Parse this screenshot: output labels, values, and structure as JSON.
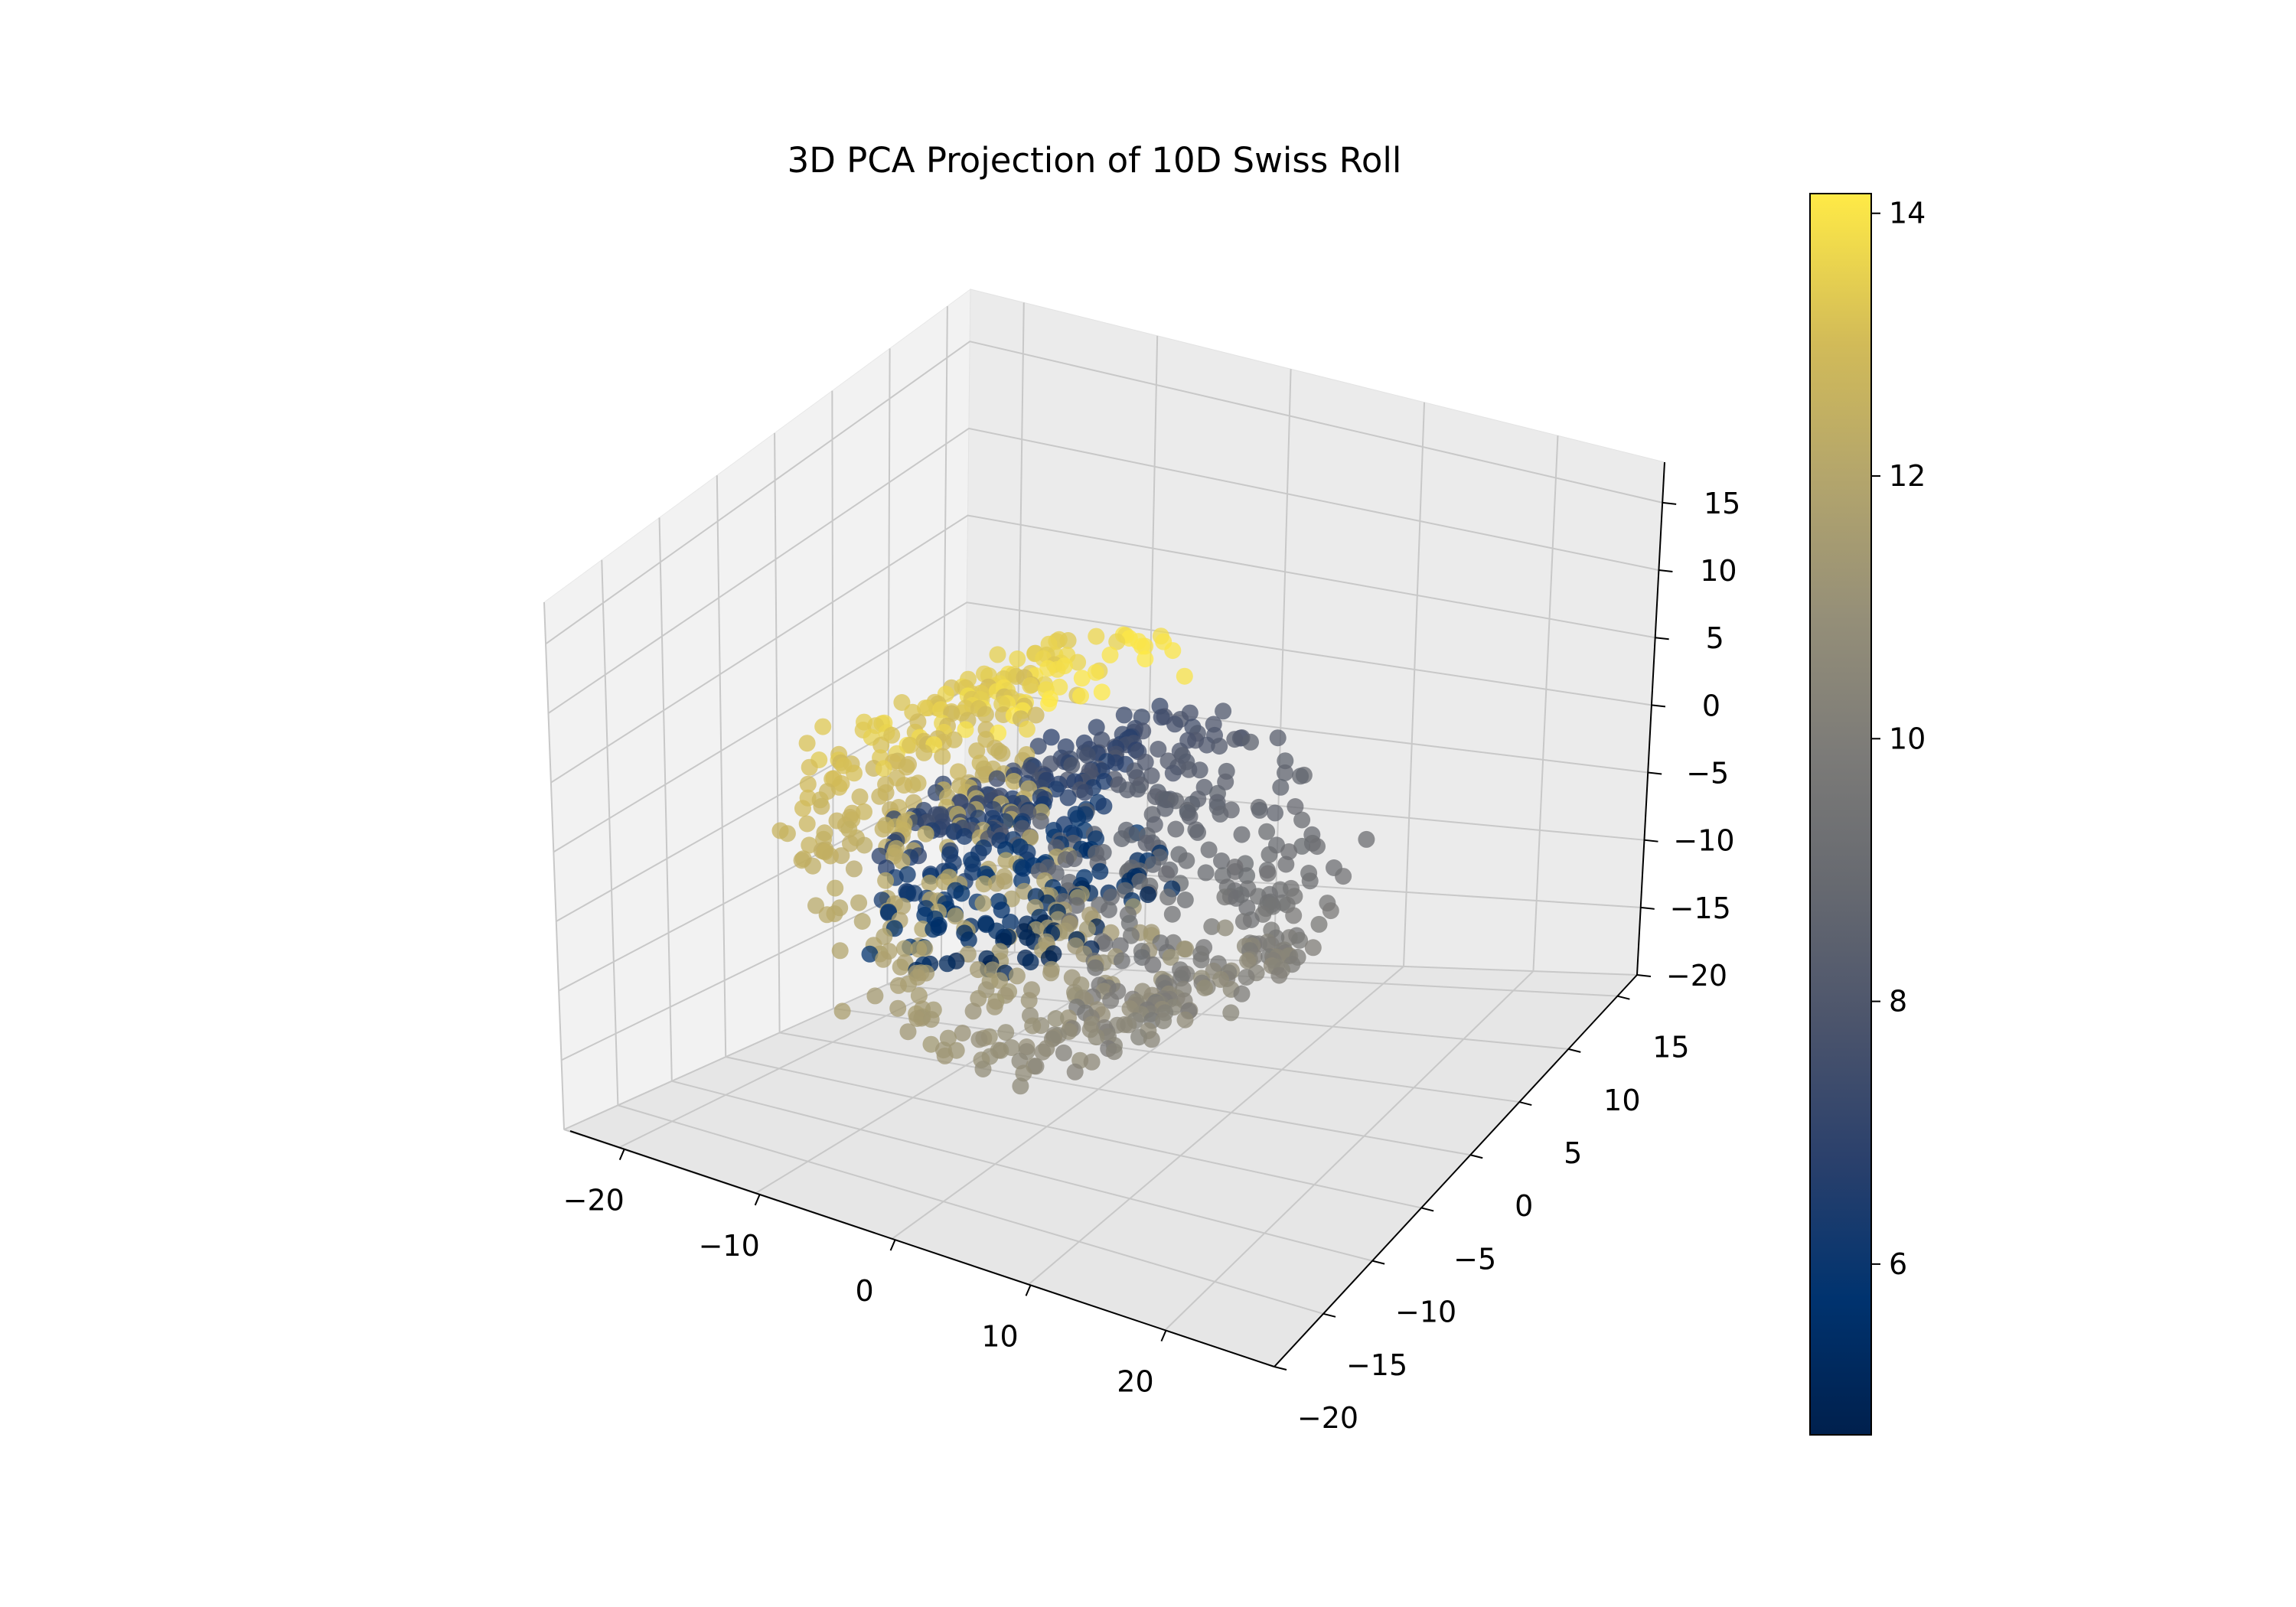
{
  "chart_data": {
    "type": "scatter",
    "projection": "3d",
    "title": "3D PCA Projection of 10D Swiss Roll",
    "xlabel": "",
    "ylabel": "",
    "zlabel": "",
    "xlim": [
      -24,
      28
    ],
    "ylim": [
      -20,
      17
    ],
    "zlim": [
      -20,
      18
    ],
    "xticks": [
      -20,
      -10,
      0,
      10,
      20
    ],
    "xtick_labels": [
      "−20",
      "−10",
      "0",
      "10",
      "20"
    ],
    "yticks": [
      -20,
      -15,
      -10,
      -5,
      0,
      5,
      10,
      15
    ],
    "ytick_labels": [
      "−20",
      "−15",
      "−10",
      "−5",
      "0",
      "5",
      "10",
      "15"
    ],
    "zticks": [
      -20,
      -15,
      -10,
      -5,
      0,
      5,
      10,
      15
    ],
    "ztick_labels": [
      "−20",
      "−15",
      "−10",
      "−5",
      "0",
      "5",
      "10",
      "15"
    ],
    "grid": true,
    "colormap": "cividis",
    "colormap_colors": [
      "#00204d",
      "#00336f",
      "#2a406c",
      "#4b546c",
      "#666970",
      "#7c7b78",
      "#958f78",
      "#b3a56c",
      "#d2bb58",
      "#ffea46"
    ],
    "colorbar": {
      "min": 4.7,
      "max": 14.15,
      "ticks": [
        6,
        8,
        10,
        12,
        14
      ],
      "tick_labels": [
        "6",
        "8",
        "10",
        "12",
        "14"
      ]
    },
    "color_variable_range": [
      4.7,
      14.15
    ],
    "n_points_estimated": 1000,
    "curve_description": "Swiss roll spiral: points follow a spiral parameterized by color value t (4.7 to 14.15), roughly x ≈ t·cos(t), z ≈ t·sin(t), spread along the y axis"
  }
}
